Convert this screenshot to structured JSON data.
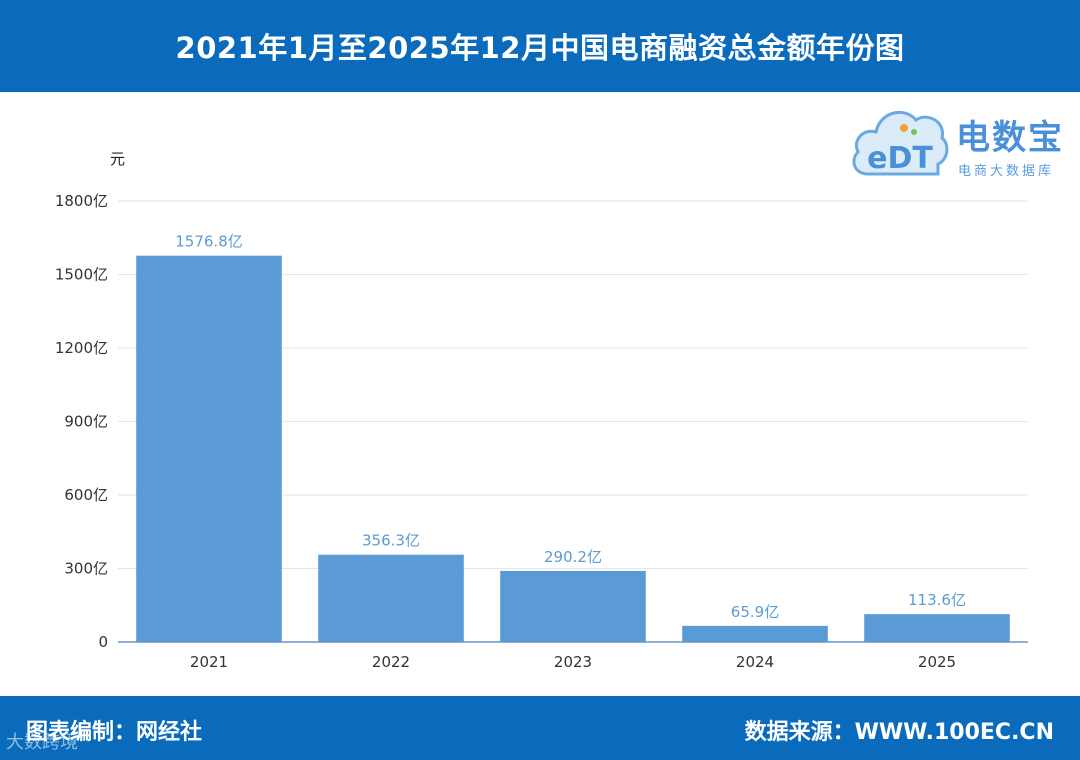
{
  "header": {
    "title": "2021年1月至2025年12月中国电商融资总金额年份图"
  },
  "logo": {
    "badge": "eDT",
    "brand": "电数宝",
    "subtitle": "电商大数据库"
  },
  "chart_data": {
    "type": "bar",
    "unit_label": "元",
    "categories": [
      "2021",
      "2022",
      "2023",
      "2024",
      "2025"
    ],
    "values": [
      1576.8,
      356.3,
      290.2,
      65.9,
      113.6
    ],
    "data_labels": [
      "1576.8亿",
      "356.3亿",
      "290.2亿",
      "65.9亿",
      "113.6亿"
    ],
    "yticks": [
      0,
      300,
      600,
      900,
      1200,
      1500,
      1800
    ],
    "ytick_labels": [
      "0",
      "300亿",
      "600亿",
      "900亿",
      "1200亿",
      "1500亿",
      "1800亿"
    ],
    "ylim": [
      0,
      1800
    ],
    "bar_color": "#5b9bd5",
    "label_color": "#5b9bd5",
    "grid": true
  },
  "footer": {
    "left": "图表编制：网经社",
    "right": "数据来源：WWW.100EC.CN"
  },
  "watermark": "大数跨境"
}
